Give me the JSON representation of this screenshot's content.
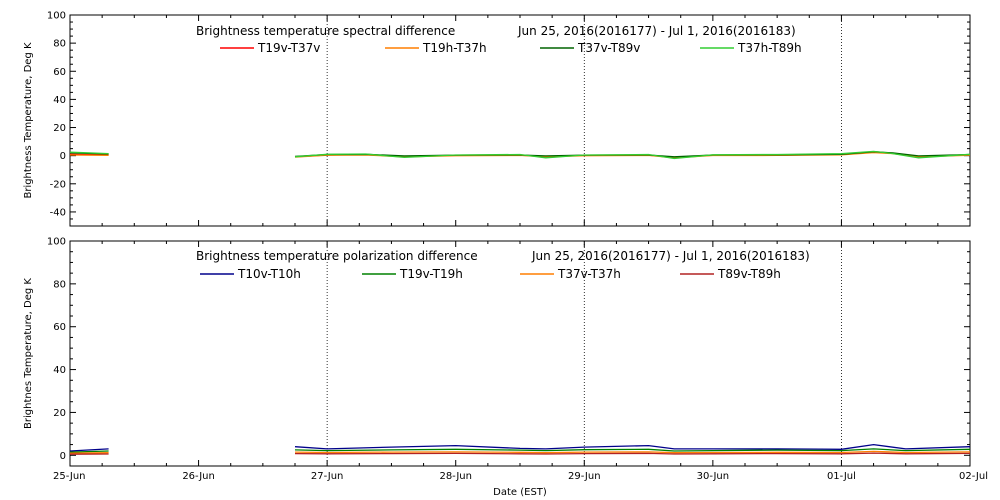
{
  "chart_data": [
    {
      "type": "line",
      "title": "Brightness temperature spectral difference",
      "date_range": "Jun 25, 2016(2016177) - Jul  1, 2016(2016183)",
      "ylabel": "Brightness Temperature, Deg K",
      "xlabel": "",
      "ylim": [
        -50,
        100
      ],
      "yticks": [
        -40,
        -20,
        0,
        20,
        40,
        60,
        80,
        100
      ],
      "xlim_days": [
        0,
        7
      ],
      "grid_x_days": [
        2,
        4,
        6
      ],
      "gaps": [
        [
          0.3,
          1.75
        ]
      ],
      "series": [
        {
          "name": "T19v-T37v",
          "color": "#ff0000",
          "values": [
            [
              0.0,
              1.0
            ],
            [
              0.3,
              0.6
            ],
            [
              1.75,
              -0.8
            ],
            [
              2.0,
              0.5
            ],
            [
              2.3,
              0.8
            ],
            [
              2.6,
              -0.5
            ],
            [
              3.0,
              0.2
            ],
            [
              3.5,
              0.3
            ],
            [
              3.7,
              -0.5
            ],
            [
              4.0,
              0.2
            ],
            [
              4.5,
              0.3
            ],
            [
              4.7,
              -1.2
            ],
            [
              5.0,
              0.3
            ],
            [
              5.5,
              0.4
            ],
            [
              6.0,
              0.8
            ],
            [
              6.25,
              2.5
            ],
            [
              6.4,
              1.8
            ],
            [
              6.6,
              -0.5
            ],
            [
              7.0,
              0.5
            ]
          ]
        },
        {
          "name": "T19h-T37h",
          "color": "#ff7f00",
          "values": [
            [
              0.0,
              0.5
            ],
            [
              0.3,
              0.2
            ],
            [
              1.75,
              -1.0
            ],
            [
              2.0,
              0.3
            ],
            [
              2.3,
              0.5
            ],
            [
              2.6,
              -0.8
            ],
            [
              3.0,
              0.0
            ],
            [
              3.5,
              0.2
            ],
            [
              3.7,
              -0.8
            ],
            [
              4.0,
              0.0
            ],
            [
              4.5,
              0.2
            ],
            [
              4.7,
              -1.5
            ],
            [
              5.0,
              0.1
            ],
            [
              5.5,
              0.2
            ],
            [
              6.0,
              0.6
            ],
            [
              6.25,
              2.2
            ],
            [
              6.4,
              1.5
            ],
            [
              6.6,
              -0.8
            ],
            [
              7.0,
              0.3
            ]
          ]
        },
        {
          "name": "T37v-T89v",
          "color": "#006400",
          "values": [
            [
              0.0,
              2.0
            ],
            [
              0.3,
              1.2
            ],
            [
              1.75,
              -0.5
            ],
            [
              2.0,
              0.8
            ],
            [
              2.3,
              1.0
            ],
            [
              2.6,
              -0.2
            ],
            [
              3.0,
              0.4
            ],
            [
              3.5,
              0.5
            ],
            [
              3.7,
              -0.2
            ],
            [
              4.0,
              0.4
            ],
            [
              4.5,
              0.5
            ],
            [
              4.7,
              -0.8
            ],
            [
              5.0,
              0.5
            ],
            [
              5.5,
              0.6
            ],
            [
              6.0,
              1.0
            ],
            [
              6.25,
              2.8
            ],
            [
              6.4,
              2.0
            ],
            [
              6.6,
              -0.2
            ],
            [
              7.0,
              0.8
            ]
          ]
        },
        {
          "name": "T37h-T89h",
          "color": "#32cd32",
          "values": [
            [
              0.0,
              2.5
            ],
            [
              0.3,
              1.5
            ],
            [
              1.75,
              -0.8
            ],
            [
              2.0,
              1.0
            ],
            [
              2.3,
              1.2
            ],
            [
              2.6,
              -1.2
            ],
            [
              3.0,
              0.5
            ],
            [
              3.5,
              0.8
            ],
            [
              3.7,
              -1.5
            ],
            [
              4.0,
              0.5
            ],
            [
              4.5,
              0.8
            ],
            [
              4.7,
              -2.0
            ],
            [
              5.0,
              0.6
            ],
            [
              5.5,
              0.8
            ],
            [
              6.0,
              1.4
            ],
            [
              6.25,
              3.0
            ],
            [
              6.4,
              1.5
            ],
            [
              6.6,
              -1.5
            ],
            [
              7.0,
              1.0
            ]
          ]
        }
      ]
    },
    {
      "type": "line",
      "title": "Brightness temperature polarization difference",
      "date_range": "Jun 25, 2016(2016177) - Jul  1, 2016(2016183)",
      "ylabel": "Brightnes Temperature, Deg K",
      "xlabel": "Date (EST)",
      "ylim": [
        -5,
        100
      ],
      "yticks": [
        0,
        20,
        40,
        60,
        80,
        100
      ],
      "xlim_days": [
        0,
        7
      ],
      "x_tick_labels": [
        "25-Jun",
        "26-Jun",
        "27-Jun",
        "28-Jun",
        "29-Jun",
        "30-Jun",
        "01-Jul",
        "02-Jul"
      ],
      "grid_x_days": [
        2,
        4,
        6
      ],
      "gaps": [
        [
          0.3,
          1.75
        ]
      ],
      "series": [
        {
          "name": "T10v-T10h",
          "color": "#00008b",
          "values": [
            [
              0.0,
              2.0
            ],
            [
              0.3,
              3.0
            ],
            [
              1.75,
              4.0
            ],
            [
              2.0,
              3.0
            ],
            [
              2.5,
              3.8
            ],
            [
              3.0,
              4.5
            ],
            [
              3.5,
              3.2
            ],
            [
              3.7,
              3.0
            ],
            [
              4.0,
              3.8
            ],
            [
              4.5,
              4.5
            ],
            [
              4.7,
              3.0
            ],
            [
              5.0,
              3.0
            ],
            [
              5.5,
              3.0
            ],
            [
              6.0,
              2.8
            ],
            [
              6.25,
              5.0
            ],
            [
              6.5,
              3.0
            ],
            [
              7.0,
              4.0
            ]
          ]
        },
        {
          "name": "T19v-T19h",
          "color": "#008000",
          "values": [
            [
              0.0,
              1.5
            ],
            [
              0.3,
              2.0
            ],
            [
              1.75,
              2.5
            ],
            [
              2.0,
              2.2
            ],
            [
              2.5,
              2.5
            ],
            [
              3.0,
              2.8
            ],
            [
              3.5,
              2.4
            ],
            [
              3.7,
              2.2
            ],
            [
              4.0,
              2.6
            ],
            [
              4.5,
              2.8
            ],
            [
              4.7,
              2.0
            ],
            [
              5.0,
              2.2
            ],
            [
              5.5,
              2.4
            ],
            [
              6.0,
              2.2
            ],
            [
              6.25,
              3.0
            ],
            [
              6.5,
              2.2
            ],
            [
              7.0,
              2.8
            ]
          ]
        },
        {
          "name": "T37v-T37h",
          "color": "#ff7f00",
          "values": [
            [
              0.0,
              1.0
            ],
            [
              0.3,
              1.2
            ],
            [
              1.75,
              1.5
            ],
            [
              2.0,
              1.3
            ],
            [
              2.5,
              1.5
            ],
            [
              3.0,
              1.6
            ],
            [
              3.5,
              1.4
            ],
            [
              3.7,
              1.2
            ],
            [
              4.0,
              1.5
            ],
            [
              4.5,
              1.6
            ],
            [
              4.7,
              1.2
            ],
            [
              5.0,
              1.3
            ],
            [
              5.5,
              1.4
            ],
            [
              6.0,
              1.3
            ],
            [
              6.25,
              1.8
            ],
            [
              6.5,
              1.3
            ],
            [
              7.0,
              1.6
            ]
          ]
        },
        {
          "name": "T89v-T89h",
          "color": "#b22222",
          "values": [
            [
              0.0,
              0.5
            ],
            [
              0.3,
              0.6
            ],
            [
              1.75,
              0.8
            ],
            [
              2.0,
              0.7
            ],
            [
              2.5,
              0.8
            ],
            [
              3.0,
              0.9
            ],
            [
              3.5,
              0.7
            ],
            [
              3.7,
              0.6
            ],
            [
              4.0,
              0.8
            ],
            [
              4.5,
              0.9
            ],
            [
              4.7,
              0.6
            ],
            [
              5.0,
              0.7
            ],
            [
              5.5,
              0.8
            ],
            [
              6.0,
              0.7
            ],
            [
              6.25,
              1.0
            ],
            [
              6.5,
              0.7
            ],
            [
              7.0,
              0.9
            ]
          ]
        }
      ]
    }
  ]
}
